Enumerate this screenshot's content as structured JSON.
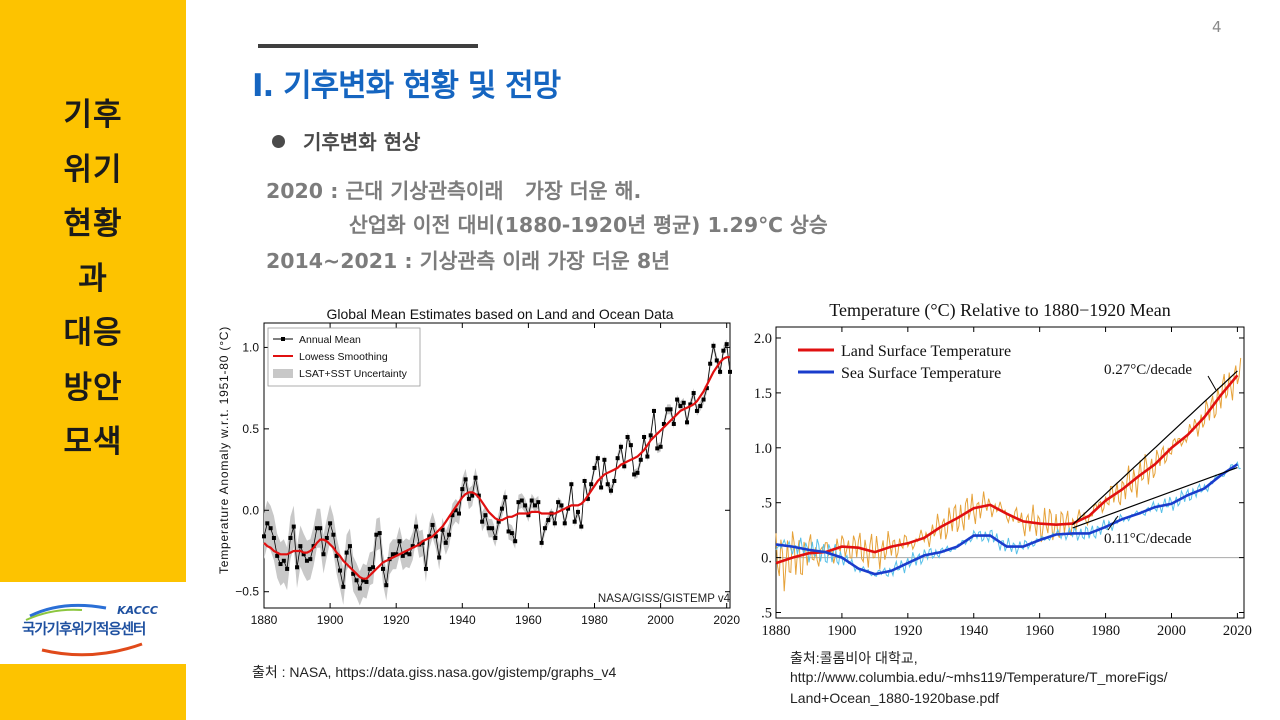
{
  "sidebar": {
    "title_lines": [
      "기후",
      "위기",
      "현황",
      "과",
      "대응",
      "방안",
      "모색"
    ]
  },
  "logo": {
    "abbr": "KACCC",
    "name": "국가기후위기적응센터"
  },
  "page_number": "4",
  "heading": "I. 기후변화 현황 및 전망",
  "bullet": "기후변화 현상",
  "lines": [
    "2020 : 근대 기상관측이래   가장 더운 해.",
    "산업화 이전 대비(1880-1920년 평균) 1.29℃ 상승",
    "2014~2021 : 기상관측 이래 가장 더운 8년"
  ],
  "sources": {
    "left": "출처 : NASA, https://data.giss.nasa.gov/gistemp/graphs_v4",
    "right_1": "출처:콜롬비아 대학교,",
    "right_2": "http://www.columbia.edu/~mhs119/Temperature/T_moreFigs/",
    "right_3": "Land+Ocean_1880-1920base.pdf"
  },
  "chart_data": [
    {
      "type": "line",
      "title": "Global Mean Estimates based on Land and Ocean Data",
      "xlabel": "",
      "ylabel": "Temperature Anomaly w.r.t. 1951-80 (°C)",
      "xlim": [
        1880,
        2021
      ],
      "ylim": [
        -0.6,
        1.15
      ],
      "xticks": [
        1880,
        1900,
        1920,
        1940,
        1960,
        1980,
        2000,
        2020
      ],
      "yticks": [
        -0.5,
        0.0,
        0.5,
        1.0
      ],
      "ytick_labels": [
        "−0.5",
        "0.0",
        "0.5",
        "1.0"
      ],
      "legend": [
        "Annual Mean",
        "Lowess Smoothing",
        "LSAT+SST Uncertainty"
      ],
      "annotation": "NASA/GISS/GISTEMP v4",
      "colors": {
        "annual": "#000000",
        "smooth": "#e01010",
        "band": "#c8c8c8"
      },
      "start_year": 1880,
      "annual": [
        -0.16,
        -0.08,
        -0.11,
        -0.17,
        -0.28,
        -0.33,
        -0.31,
        -0.36,
        -0.17,
        -0.1,
        -0.35,
        -0.22,
        -0.27,
        -0.31,
        -0.3,
        -0.22,
        -0.11,
        -0.11,
        -0.27,
        -0.17,
        -0.08,
        -0.15,
        -0.28,
        -0.37,
        -0.47,
        -0.26,
        -0.22,
        -0.39,
        -0.43,
        -0.48,
        -0.43,
        -0.44,
        -0.36,
        -0.35,
        -0.15,
        -0.14,
        -0.36,
        -0.46,
        -0.3,
        -0.27,
        -0.27,
        -0.19,
        -0.28,
        -0.26,
        -0.27,
        -0.22,
        -0.1,
        -0.21,
        -0.2,
        -0.36,
        -0.16,
        -0.09,
        -0.16,
        -0.29,
        -0.12,
        -0.2,
        -0.15,
        -0.03,
        -0.0,
        -0.02,
        0.13,
        0.19,
        0.07,
        0.09,
        0.2,
        0.09,
        -0.07,
        -0.03,
        -0.11,
        -0.11,
        -0.17,
        -0.07,
        0.01,
        0.08,
        -0.13,
        -0.14,
        -0.19,
        0.05,
        0.06,
        0.03,
        -0.03,
        0.06,
        0.03,
        0.05,
        -0.2,
        -0.11,
        -0.06,
        -0.02,
        -0.08,
        0.05,
        0.03,
        -0.08,
        0.01,
        0.16,
        -0.07,
        -0.01,
        -0.1,
        0.18,
        0.07,
        0.16,
        0.26,
        0.32,
        0.14,
        0.31,
        0.16,
        0.12,
        0.18,
        0.32,
        0.39,
        0.27,
        0.45,
        0.4,
        0.22,
        0.23,
        0.31,
        0.45,
        0.33,
        0.46,
        0.61,
        0.38,
        0.39,
        0.53,
        0.62,
        0.62,
        0.53,
        0.68,
        0.64,
        0.66,
        0.54,
        0.65,
        0.72,
        0.61,
        0.64,
        0.68,
        0.75,
        0.9,
        1.01,
        0.92,
        0.85,
        0.98,
        1.02,
        0.85
      ],
      "smooth": [
        -0.2,
        -0.22,
        -0.23,
        -0.25,
        -0.26,
        -0.27,
        -0.27,
        -0.27,
        -0.26,
        -0.25,
        -0.25,
        -0.25,
        -0.26,
        -0.26,
        -0.25,
        -0.23,
        -0.2,
        -0.18,
        -0.18,
        -0.19,
        -0.21,
        -0.23,
        -0.26,
        -0.28,
        -0.31,
        -0.33,
        -0.35,
        -0.37,
        -0.39,
        -0.41,
        -0.42,
        -0.42,
        -0.4,
        -0.38,
        -0.36,
        -0.34,
        -0.32,
        -0.31,
        -0.3,
        -0.29,
        -0.28,
        -0.27,
        -0.26,
        -0.25,
        -0.24,
        -0.23,
        -0.22,
        -0.21,
        -0.19,
        -0.18,
        -0.17,
        -0.16,
        -0.14,
        -0.12,
        -0.1,
        -0.07,
        -0.04,
        -0.01,
        0.02,
        0.05,
        0.08,
        0.1,
        0.11,
        0.11,
        0.1,
        0.08,
        0.05,
        0.02,
        -0.01,
        -0.03,
        -0.05,
        -0.06,
        -0.06,
        -0.05,
        -0.04,
        -0.04,
        -0.03,
        -0.02,
        -0.02,
        -0.02,
        -0.02,
        -0.01,
        -0.01,
        -0.01,
        -0.02,
        -0.02,
        -0.02,
        -0.02,
        -0.02,
        -0.01,
        0.0,
        0.01,
        0.02,
        0.03,
        0.03,
        0.03,
        0.04,
        0.06,
        0.09,
        0.12,
        0.15,
        0.18,
        0.2,
        0.22,
        0.23,
        0.24,
        0.25,
        0.26,
        0.28,
        0.29,
        0.3,
        0.31,
        0.32,
        0.33,
        0.35,
        0.37,
        0.4,
        0.43,
        0.45,
        0.47,
        0.49,
        0.51,
        0.53,
        0.55,
        0.57,
        0.59,
        0.61,
        0.62,
        0.63,
        0.64,
        0.65,
        0.67,
        0.7,
        0.73,
        0.77,
        0.81,
        0.85,
        0.88,
        0.91,
        0.93,
        0.94,
        0.94
      ]
    },
    {
      "type": "line",
      "title": "Temperature (°C) Relative to 1880−1920 Mean",
      "xlim": [
        1880,
        2022
      ],
      "ylim": [
        -0.55,
        2.1
      ],
      "xticks": [
        1880,
        1900,
        1920,
        1940,
        1960,
        1980,
        2000,
        2020
      ],
      "yticks": [
        -0.5,
        0.0,
        0.5,
        1.0,
        1.5,
        2.0
      ],
      "ytick_labels": [
        ".5",
        "0.",
        ".5",
        "1.0",
        "1.5",
        "2.0"
      ],
      "legend": [
        "Land Surface Temperature",
        "Sea Surface Temperature"
      ],
      "annotations": [
        "0.27°C/decade",
        "0.11°C/decade"
      ],
      "colors": {
        "land_raw": "#e6a23a",
        "land_smooth": "#e01010",
        "sea_raw": "#58c0e8",
        "sea_smooth": "#1a3ccc",
        "trend": "#000000"
      },
      "start_year": 1880,
      "land_years": [
        1880,
        1885,
        1890,
        1895,
        1900,
        1905,
        1910,
        1915,
        1920,
        1925,
        1930,
        1935,
        1940,
        1945,
        1950,
        1955,
        1960,
        1965,
        1970,
        1975,
        1980,
        1985,
        1990,
        1995,
        2000,
        2005,
        2010,
        2015,
        2020
      ],
      "land_smooth": [
        -0.05,
        0.0,
        0.04,
        0.05,
        0.1,
        0.09,
        0.05,
        0.1,
        0.13,
        0.18,
        0.28,
        0.36,
        0.45,
        0.48,
        0.4,
        0.33,
        0.31,
        0.3,
        0.31,
        0.38,
        0.52,
        0.62,
        0.74,
        0.85,
        1.0,
        1.12,
        1.28,
        1.48,
        1.66
      ],
      "sea_years": [
        1880,
        1885,
        1890,
        1895,
        1900,
        1905,
        1910,
        1915,
        1920,
        1925,
        1930,
        1935,
        1940,
        1945,
        1950,
        1955,
        1960,
        1965,
        1970,
        1975,
        1980,
        1985,
        1990,
        1995,
        2000,
        2005,
        2010,
        2015,
        2020
      ],
      "sea_smooth": [
        0.12,
        0.1,
        0.07,
        0.05,
        0.0,
        -0.1,
        -0.15,
        -0.12,
        -0.05,
        0.02,
        0.05,
        0.1,
        0.2,
        0.2,
        0.1,
        0.1,
        0.16,
        0.21,
        0.22,
        0.22,
        0.28,
        0.35,
        0.4,
        0.46,
        0.49,
        0.57,
        0.63,
        0.75,
        0.85
      ],
      "land_trend": {
        "x": [
          1970,
          2020
        ],
        "y": [
          0.3,
          1.7
        ]
      },
      "sea_trend": {
        "x": [
          1970,
          2020
        ],
        "y": [
          0.27,
          0.82
        ]
      }
    }
  ]
}
